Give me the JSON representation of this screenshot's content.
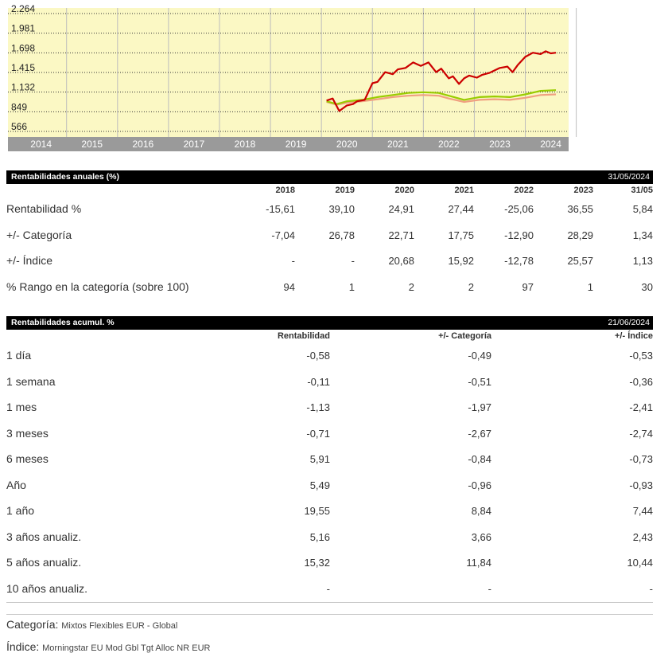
{
  "chart_data": {
    "type": "line",
    "y_ticks": [
      "2.264",
      "1.981",
      "1.698",
      "1.415",
      "1.132",
      "849",
      "566"
    ],
    "y_tick_values": [
      2264,
      1981,
      1698,
      1415,
      1132,
      849,
      566
    ],
    "ylim": [
      566,
      2264
    ],
    "x_labels": [
      "2014",
      "2015",
      "2016",
      "2017",
      "2018",
      "2019",
      "2020",
      "2021",
      "2022",
      "2023",
      "2024"
    ],
    "xlim": [
      2013.35,
      2024.35
    ],
    "grid": true,
    "colors": {
      "plot_bg": "#fbf8c4",
      "axis_bar": "#9a9a9a",
      "fund": "#cc0000",
      "category": "#99cc00",
      "index": "#f0a080"
    },
    "series": [
      {
        "color": "#cc0000",
        "x": [
          2019.6,
          2019.72,
          2019.85,
          2020.0,
          2020.12,
          2020.2,
          2020.35,
          2020.5,
          2020.6,
          2020.75,
          2020.9,
          2021.0,
          2021.15,
          2021.3,
          2021.45,
          2021.6,
          2021.75,
          2021.85,
          2022.0,
          2022.08,
          2022.2,
          2022.3,
          2022.4,
          2022.55,
          2022.65,
          2022.8,
          2023.0,
          2023.15,
          2023.25,
          2023.35,
          2023.5,
          2023.65,
          2023.8,
          2023.9,
          2024.0,
          2024.1
        ],
        "y": [
          1010,
          1040,
          860,
          940,
          960,
          1000,
          1020,
          1260,
          1280,
          1420,
          1390,
          1460,
          1480,
          1560,
          1510,
          1560,
          1420,
          1470,
          1330,
          1360,
          1250,
          1330,
          1370,
          1340,
          1380,
          1410,
          1480,
          1500,
          1420,
          1520,
          1640,
          1700,
          1680,
          1720,
          1690,
          1700
        ]
      },
      {
        "color": "#99cc00",
        "x": [
          2019.6,
          2019.8,
          2020.0,
          2020.3,
          2020.6,
          2020.9,
          2021.2,
          2021.5,
          2021.8,
          2022.0,
          2022.3,
          2022.6,
          2022.9,
          2023.2,
          2023.5,
          2023.8,
          2024.1
        ],
        "y": [
          1000,
          960,
          1000,
          1020,
          1060,
          1090,
          1120,
          1130,
          1120,
          1080,
          1020,
          1060,
          1070,
          1060,
          1100,
          1150,
          1160
        ]
      },
      {
        "color": "#f0a080",
        "x": [
          2019.6,
          2019.8,
          2020.0,
          2020.3,
          2020.6,
          2020.9,
          2021.2,
          2021.5,
          2021.8,
          2022.0,
          2022.3,
          2022.6,
          2022.9,
          2023.2,
          2023.5,
          2023.8,
          2024.1
        ],
        "y": [
          990,
          950,
          980,
          1000,
          1030,
          1060,
          1080,
          1090,
          1080,
          1040,
          990,
          1020,
          1030,
          1020,
          1050,
          1090,
          1100
        ]
      }
    ]
  },
  "annual": {
    "title": "Rentabilidades anuales (%)",
    "date": "31/05/2024",
    "columns": [
      "2018",
      "2019",
      "2020",
      "2021",
      "2022",
      "2023",
      "31/05"
    ],
    "rows": [
      {
        "label": "Rentabilidad %",
        "values": [
          "-15,61",
          "39,10",
          "24,91",
          "27,44",
          "-25,06",
          "36,55",
          "5,84"
        ]
      },
      {
        "label": "+/- Categoría",
        "values": [
          "-7,04",
          "26,78",
          "22,71",
          "17,75",
          "-12,90",
          "28,29",
          "1,34"
        ]
      },
      {
        "label": "+/- Índice",
        "values": [
          "-",
          "-",
          "20,68",
          "15,92",
          "-12,78",
          "25,57",
          "1,13"
        ]
      },
      {
        "label": "% Rango en la categoría (sobre 100)",
        "values": [
          "94",
          "1",
          "2",
          "2",
          "97",
          "1",
          "30"
        ]
      }
    ]
  },
  "cumulative": {
    "title": "Rentabilidades acumul. %",
    "date": "21/06/2024",
    "columns": [
      "Rentabilidad",
      "+/- Categoría",
      "+/- Índice"
    ],
    "rows": [
      {
        "label": "1 día",
        "values": [
          "-0,58",
          "-0,49",
          "-0,53"
        ]
      },
      {
        "label": "1 semana",
        "values": [
          "-0,11",
          "-0,51",
          "-0,36"
        ]
      },
      {
        "label": "1 mes",
        "values": [
          "-1,13",
          "-1,97",
          "-2,41"
        ]
      },
      {
        "label": "3 meses",
        "values": [
          "-0,71",
          "-2,67",
          "-2,74"
        ]
      },
      {
        "label": "6 meses",
        "values": [
          "5,91",
          "-0,84",
          "-0,73"
        ]
      },
      {
        "label": "Año",
        "values": [
          "5,49",
          "-0,96",
          "-0,93"
        ]
      },
      {
        "label": "1 año",
        "values": [
          "19,55",
          "8,84",
          "7,44"
        ]
      },
      {
        "label": "3 años anualiz.",
        "values": [
          "5,16",
          "3,66",
          "2,43"
        ]
      },
      {
        "label": "5 años anualiz.",
        "values": [
          "15,32",
          "11,84",
          "10,44"
        ]
      },
      {
        "label": "10 años anualiz.",
        "values": [
          "-",
          "-",
          "-"
        ]
      }
    ]
  },
  "footer": {
    "category_label": "Categoría",
    "category_value": "Mixtos Flexibles EUR - Global",
    "index_label": "Índice",
    "index_value": "Morningstar EU Mod Gbl Tgt Alloc NR EUR"
  }
}
